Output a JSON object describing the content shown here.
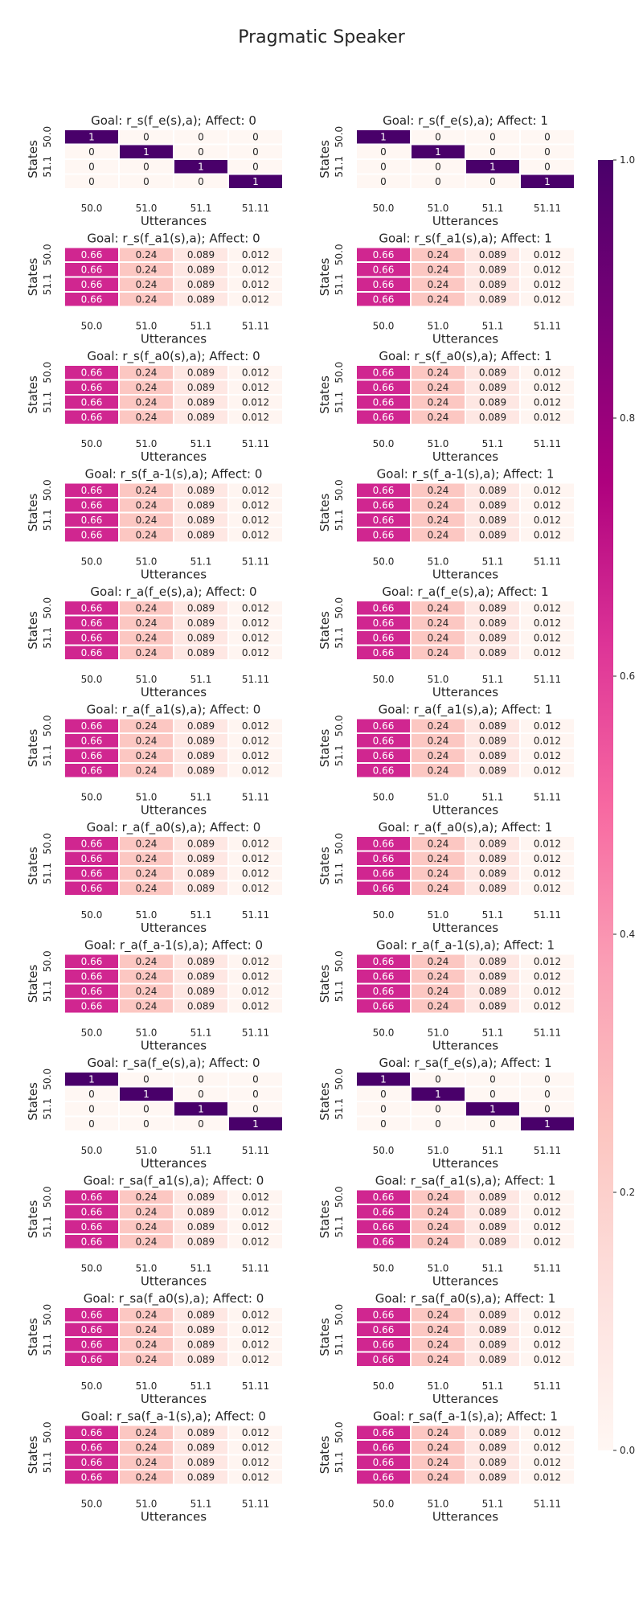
{
  "figure": {
    "title": "Pragmatic Speaker"
  },
  "chart_data": {
    "type": "heatmap",
    "title": "Pragmatic Speaker",
    "xlabel": "Utterances",
    "ylabel": "States",
    "x_tick_labels": [
      "50.0",
      "51.0",
      "51.1",
      "51.11"
    ],
    "y_tick_labels": [
      "50.0",
      "51.1"
    ],
    "colorbar": {
      "range": [
        0.0,
        1.0
      ],
      "ticks": [
        "0.0",
        "0.2",
        "0.4",
        "0.6",
        "0.8",
        "1.0"
      ],
      "colormap": "RdPu"
    },
    "matrices": {
      "identity": [
        [
          "1",
          "0",
          "0",
          "0"
        ],
        [
          "0",
          "1",
          "0",
          "0"
        ],
        [
          "0",
          "0",
          "1",
          "0"
        ],
        [
          "0",
          "0",
          "0",
          "1"
        ]
      ],
      "uniform": [
        [
          "0.66",
          "0.24",
          "0.089",
          "0.012"
        ],
        [
          "0.66",
          "0.24",
          "0.089",
          "0.012"
        ],
        [
          "0.66",
          "0.24",
          "0.089",
          "0.012"
        ],
        [
          "0.66",
          "0.24",
          "0.089",
          "0.012"
        ]
      ]
    },
    "panels": [
      {
        "title": "Goal: r_s(f_e(s),a); Affect: 0",
        "matrix": "identity"
      },
      {
        "title": "Goal: r_s(f_e(s),a); Affect: 1",
        "matrix": "identity"
      },
      {
        "title": "Goal: r_s(f_a1(s),a); Affect: 0",
        "matrix": "uniform"
      },
      {
        "title": "Goal: r_s(f_a1(s),a); Affect: 1",
        "matrix": "uniform"
      },
      {
        "title": "Goal: r_s(f_a0(s),a); Affect: 0",
        "matrix": "uniform"
      },
      {
        "title": "Goal: r_s(f_a0(s),a); Affect: 1",
        "matrix": "uniform"
      },
      {
        "title": "Goal: r_s(f_a-1(s),a); Affect: 0",
        "matrix": "uniform"
      },
      {
        "title": "Goal: r_s(f_a-1(s),a); Affect: 1",
        "matrix": "uniform"
      },
      {
        "title": "Goal: r_a(f_e(s),a); Affect: 0",
        "matrix": "uniform"
      },
      {
        "title": "Goal: r_a(f_e(s),a); Affect: 1",
        "matrix": "uniform"
      },
      {
        "title": "Goal: r_a(f_a1(s),a); Affect: 0",
        "matrix": "uniform"
      },
      {
        "title": "Goal: r_a(f_a1(s),a); Affect: 1",
        "matrix": "uniform"
      },
      {
        "title": "Goal: r_a(f_a0(s),a); Affect: 0",
        "matrix": "uniform"
      },
      {
        "title": "Goal: r_a(f_a0(s),a); Affect: 1",
        "matrix": "uniform"
      },
      {
        "title": "Goal: r_a(f_a-1(s),a); Affect: 0",
        "matrix": "uniform"
      },
      {
        "title": "Goal: r_a(f_a-1(s),a); Affect: 1",
        "matrix": "uniform"
      },
      {
        "title": "Goal: r_sa(f_e(s),a); Affect: 0",
        "matrix": "identity"
      },
      {
        "title": "Goal: r_sa(f_e(s),a); Affect: 1",
        "matrix": "identity"
      },
      {
        "title": "Goal: r_sa(f_a1(s),a); Affect: 0",
        "matrix": "uniform"
      },
      {
        "title": "Goal: r_sa(f_a1(s),a); Affect: 1",
        "matrix": "uniform"
      },
      {
        "title": "Goal: r_sa(f_a0(s),a); Affect: 0",
        "matrix": "uniform"
      },
      {
        "title": "Goal: r_sa(f_a0(s),a); Affect: 1",
        "matrix": "uniform"
      },
      {
        "title": "Goal: r_sa(f_a-1(s),a); Affect: 0",
        "matrix": "uniform"
      },
      {
        "title": "Goal: r_sa(f_a-1(s),a); Affect: 1",
        "matrix": "uniform"
      }
    ]
  }
}
